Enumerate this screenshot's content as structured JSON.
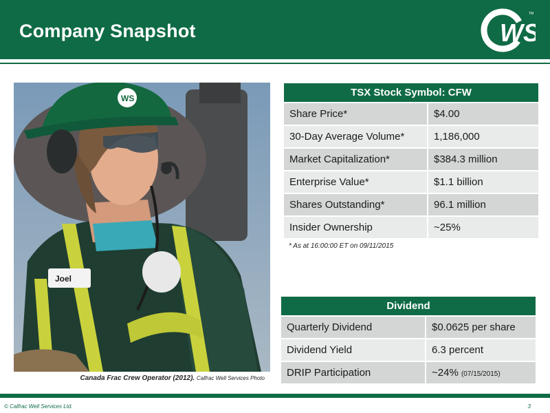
{
  "header": {
    "title": "Company Snapshot",
    "logo_icon": "calfrac-ws-logo",
    "logo_text": "WS",
    "brand_color": "#0f6b45"
  },
  "photo": {
    "badge_text": "WS",
    "name_tag": "Joel",
    "caption": "Canada Frac Crew Operator (2012).",
    "caption_credit": "Calfrac Well Services Photo"
  },
  "stock_table": {
    "header": "TSX Stock Symbol: CFW",
    "rows": [
      {
        "label": "Share Price*",
        "value": "$4.00"
      },
      {
        "label": "30-Day Average Volume*",
        "value": "1,186,000"
      },
      {
        "label": "Market Capitalization*",
        "value": "$384.3 million"
      },
      {
        "label": "Enterprise Value*",
        "value": "$1.1 billion"
      },
      {
        "label": "Shares Outstanding*",
        "value": "96.1 million"
      },
      {
        "label": "Insider Ownership",
        "value": "~25%"
      }
    ],
    "footnote": "* As at 16:00:00 ET on 09/11/2015"
  },
  "dividend_table": {
    "header": "Dividend",
    "rows": [
      {
        "label": "Quarterly Dividend",
        "value": "$0.0625 per share",
        "note": ""
      },
      {
        "label": "Dividend Yield",
        "value": "6.3 percent",
        "note": ""
      },
      {
        "label": "DRIP Participation",
        "value": "~24%",
        "note": "(07/15/2015)"
      }
    ]
  },
  "footer": {
    "copyright": "© Calfrac Well Services Ltd.",
    "page": "3"
  }
}
